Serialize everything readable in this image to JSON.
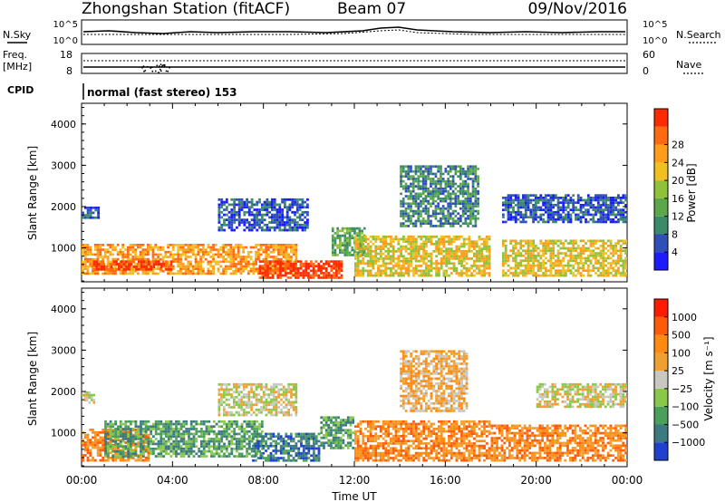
{
  "header": {
    "title": "Zhongshan Station (fitACF)",
    "beam": "Beam 07",
    "date": "09/Nov/2016"
  },
  "top_panels": {
    "nsky_label": "N.Sky",
    "nsearch_label": "N.Search",
    "noise_ticks_left": [
      "10^5",
      "10^0"
    ],
    "noise_ticks_right": [
      "10^5",
      "10^0"
    ],
    "freq_label": "Freq.",
    "freq_unit": "[MHz]",
    "freq_ticks": [
      "18",
      "8"
    ],
    "nave_label": "Nave",
    "nave_ticks": [
      "60",
      "0"
    ],
    "cpid_label": "CPID",
    "cpid_text": "normal (fast stereo) 153"
  },
  "colors": {
    "power": [
      "#1c1cff",
      "#2f4fb8",
      "#3b8a6a",
      "#5aa84a",
      "#8fc23a",
      "#f0c020",
      "#ff9c1a",
      "#ff6a10",
      "#ff2a00"
    ],
    "velocity": [
      "#ff1a00",
      "#ff5a08",
      "#ff8a10",
      "#f0a030",
      "#c8c8c0",
      "#8ac84a",
      "#4aa05a",
      "#3a7a80",
      "#2040d0"
    ]
  },
  "chart_data": [
    {
      "type": "heatmap",
      "name": "power",
      "ylabel": "Slant Range [km]",
      "ylim": [
        180,
        4500
      ],
      "yticks": [
        "1000",
        "2000",
        "3000",
        "4000"
      ],
      "xlim": [
        0,
        24
      ],
      "xticks": [
        "00:00",
        "04:00",
        "08:00",
        "12:00",
        "16:00",
        "20:00",
        "00:00"
      ],
      "colorbar_label": "Power [dB]",
      "colorbar_ticks": [
        "4",
        "8",
        "12",
        "16",
        "20",
        "24",
        "28"
      ],
      "blobs": [
        {
          "t0": 0.0,
          "t1": 9.5,
          "r0": 350,
          "r1": 1100,
          "level": 6
        },
        {
          "t0": 0.5,
          "t1": 4.0,
          "r0": 450,
          "r1": 700,
          "level": 8
        },
        {
          "t0": 7.8,
          "t1": 11.5,
          "r0": 250,
          "r1": 700,
          "level": 8
        },
        {
          "t0": 11.0,
          "t1": 12.5,
          "r0": 800,
          "r1": 1500,
          "level": 3
        },
        {
          "t0": 12.0,
          "t1": 18.0,
          "r0": 300,
          "r1": 1300,
          "level": 5
        },
        {
          "t0": 14.0,
          "t1": 17.5,
          "r0": 1500,
          "r1": 3000,
          "level": 2
        },
        {
          "t0": 18.5,
          "t1": 24.0,
          "r0": 300,
          "r1": 1200,
          "level": 5
        },
        {
          "t0": 18.5,
          "t1": 24.0,
          "r0": 1600,
          "r1": 2300,
          "level": 1
        },
        {
          "t0": 6.0,
          "t1": 10.0,
          "r0": 1400,
          "r1": 2200,
          "level": 1
        },
        {
          "t0": 0.0,
          "t1": 0.8,
          "r0": 1700,
          "r1": 2000,
          "level": 1
        }
      ]
    },
    {
      "type": "heatmap",
      "name": "velocity",
      "ylabel": "Slant Range [km]",
      "ylim": [
        180,
        4500
      ],
      "yticks": [
        "1000",
        "2000",
        "3000",
        "4000"
      ],
      "xlabel": "Time UT",
      "xlim": [
        0,
        24
      ],
      "xticks": [
        "00:00",
        "04:00",
        "08:00",
        "12:00",
        "16:00",
        "20:00",
        "00:00"
      ],
      "colorbar_label": "Velocity [m s⁻¹]",
      "colorbar_ticks": [
        "1000",
        "500",
        "100",
        "25",
        "−25",
        "−100",
        "−500",
        "−1000"
      ],
      "blobs": [
        {
          "t0": 0.0,
          "t1": 3.0,
          "r0": 300,
          "r1": 1100,
          "level": 6
        },
        {
          "t0": 1.0,
          "t1": 8.0,
          "r0": 400,
          "r1": 1300,
          "level": 2
        },
        {
          "t0": 7.5,
          "t1": 10.5,
          "r0": 300,
          "r1": 1000,
          "level": 1
        },
        {
          "t0": 10.5,
          "t1": 12.0,
          "r0": 600,
          "r1": 1400,
          "level": 2
        },
        {
          "t0": 12.0,
          "t1": 18.0,
          "r0": 300,
          "r1": 1300,
          "level": 6
        },
        {
          "t0": 14.0,
          "t1": 17.0,
          "r0": 1500,
          "r1": 3000,
          "level": 5
        },
        {
          "t0": 18.0,
          "t1": 24.0,
          "r0": 300,
          "r1": 1200,
          "level": 6
        },
        {
          "t0": 20.0,
          "t1": 24.0,
          "r0": 1600,
          "r1": 2200,
          "level": 4
        },
        {
          "t0": 6.0,
          "t1": 9.5,
          "r0": 1400,
          "r1": 2200,
          "level": 4
        },
        {
          "t0": 0.0,
          "t1": 0.6,
          "r0": 1700,
          "r1": 2000,
          "level": 4
        }
      ]
    }
  ]
}
